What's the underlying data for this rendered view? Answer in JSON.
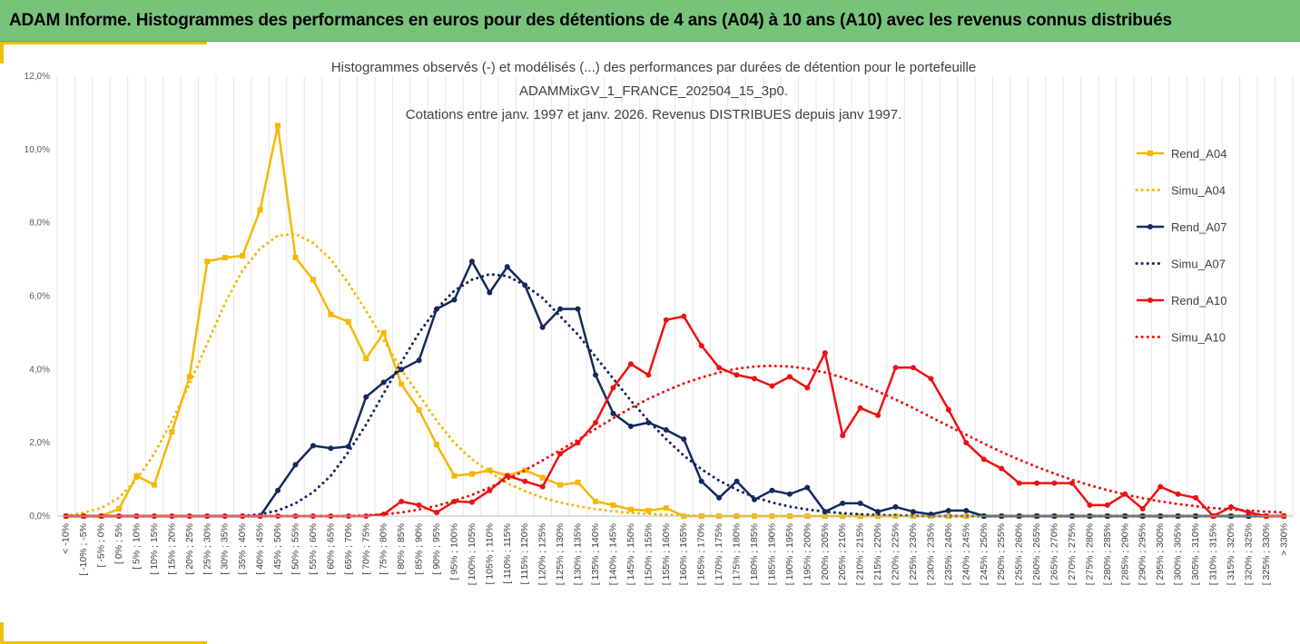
{
  "header": {
    "title": "ADAM Informe. Histogrammes des performances en euros pour des détentions de 4 ans (A04) à 10 ans (A10) avec les revenus connus distribués"
  },
  "chart_data": {
    "type": "line",
    "title_lines": [
      "Histogrammes observés (-) et modélisés (...) des performances par durées de détention pour le portefeuille",
      "ADAMMixGV_1_FRANCE_202504_15_3p0.",
      "Cotations entre janv. 1997 et janv. 2026. Revenus DISTRIBUES depuis janv 1997."
    ],
    "ylim": [
      0,
      12
    ],
    "yticks": [
      "0,0%",
      "2,0%",
      "4,0%",
      "6,0%",
      "8,0%",
      "10,0%",
      "12,0%"
    ],
    "grid": "vertical",
    "legend_position": "right",
    "categories": [
      "< -10%",
      "[ -10% ; -5%",
      "[ -5% ; 0%",
      "[ 0% ; 5%",
      "[ 5% ; 10%",
      "[ 10% ; 15%",
      "[ 15% ; 20%",
      "[ 20% ; 25%",
      "[ 25% ; 30%",
      "[ 30% ; 35%",
      "[ 35% ; 40%",
      "[ 40% ; 45%",
      "[ 45% ; 50%",
      "[ 50% ; 55%",
      "[ 55% ; 60%",
      "[ 60% ; 65%",
      "[ 65% ; 70%",
      "[ 70% ; 75%",
      "[ 75% ; 80%",
      "[ 80% ; 85%",
      "[ 85% ; 90%",
      "[ 90% ; 95%",
      "[ 95% ; 100%",
      "[ 100% ; 105%",
      "[ 105% ; 110%",
      "[ 110% ; 115%",
      "[ 115% ; 120%",
      "[ 120% ; 125%",
      "[ 125% ; 130%",
      "[ 130% ; 135%",
      "[ 135% ; 140%",
      "[ 140% ; 145%",
      "[ 145% ; 150%",
      "[ 150% ; 155%",
      "[ 155% ; 160%",
      "[ 160% ; 165%",
      "[ 165% ; 170%",
      "[ 170% ; 175%",
      "[ 175% ; 180%",
      "[ 180% ; 185%",
      "[ 185% ; 190%",
      "[ 190% ; 195%",
      "[ 195% ; 200%",
      "[ 200% ; 205%",
      "[ 205% ; 210%",
      "[ 210% ; 215%",
      "[ 215% ; 220%",
      "[ 220% ; 225%",
      "[ 225% ; 230%",
      "[ 230% ; 235%",
      "[ 235% ; 240%",
      "[ 240% ; 245%",
      "[ 245% ; 250%",
      "[ 250% ; 255%",
      "[ 255% ; 260%",
      "[ 260% ; 265%",
      "[ 265% ; 270%",
      "[ 270% ; 275%",
      "[ 275% ; 280%",
      "[ 280% ; 285%",
      "[ 285% ; 290%",
      "[ 290% ; 295%",
      "[ 295% ; 300%",
      "[ 300% ; 305%",
      "[ 305% ; 310%",
      "[ 310% ; 315%",
      "[ 315% ; 320%",
      "[ 320% ; 325%",
      "[ 325% ; 330%",
      "> 330%"
    ],
    "series": [
      {
        "name": "Rend_A04",
        "color": "#f5b800",
        "style": "solid",
        "marker": "square",
        "values": [
          0,
          0,
          0,
          0.2,
          1.1,
          0.85,
          2.3,
          3.8,
          6.95,
          7.05,
          7.1,
          8.35,
          10.65,
          7.05,
          6.45,
          5.5,
          5.3,
          4.3,
          5.0,
          3.6,
          2.9,
          1.95,
          1.1,
          1.15,
          1.25,
          1.1,
          1.25,
          1.05,
          0.85,
          0.92,
          0.4,
          0.3,
          0.18,
          0.15,
          0.22,
          0,
          0,
          0,
          0,
          0,
          0,
          0,
          0,
          0,
          0,
          0,
          0,
          0,
          0,
          0,
          0,
          0,
          0,
          0,
          0,
          0,
          0,
          0,
          0,
          0,
          0,
          0,
          0,
          0,
          0,
          0,
          0,
          0,
          0,
          0
        ]
      },
      {
        "name": "Simu_A04",
        "color": "#f5b800",
        "style": "dotted",
        "values": [
          0,
          0.1,
          0.22,
          0.5,
          1.0,
          1.7,
          2.6,
          3.6,
          4.7,
          5.8,
          6.7,
          7.3,
          7.65,
          7.7,
          7.45,
          7.0,
          6.35,
          5.6,
          4.8,
          4.0,
          3.3,
          2.6,
          2.0,
          1.55,
          1.2,
          0.9,
          0.68,
          0.5,
          0.37,
          0.27,
          0.19,
          0.13,
          0.09,
          0.06,
          0.04,
          0.02,
          0.01,
          0,
          0,
          0,
          0,
          0,
          0,
          0,
          0,
          0,
          0,
          0,
          0,
          0,
          0,
          0,
          0,
          0,
          0,
          0,
          0,
          0,
          0,
          0,
          0,
          0,
          0,
          0,
          0,
          0,
          0,
          0,
          0,
          0
        ]
      },
      {
        "name": "Rend_A07",
        "color": "#13295e",
        "style": "solid",
        "marker": "circle",
        "values": [
          0,
          0,
          0,
          0,
          0,
          0,
          0,
          0,
          0,
          0,
          0,
          0,
          0.7,
          1.4,
          1.92,
          1.85,
          1.9,
          3.25,
          3.65,
          4.0,
          4.25,
          5.65,
          5.9,
          6.95,
          6.1,
          6.8,
          6.3,
          5.15,
          5.65,
          5.65,
          3.85,
          2.8,
          2.45,
          2.55,
          2.35,
          2.1,
          0.95,
          0.5,
          0.95,
          0.45,
          0.7,
          0.6,
          0.78,
          0.12,
          0.35,
          0.35,
          0.12,
          0.25,
          0.12,
          0.05,
          0.15,
          0.15,
          0,
          0,
          0,
          0,
          0,
          0,
          0,
          0,
          0,
          0,
          0,
          0,
          0,
          0,
          0,
          0,
          0,
          0
        ]
      },
      {
        "name": "Simu_A07",
        "color": "#13295e",
        "style": "dotted",
        "values": [
          0,
          0,
          0,
          0,
          0,
          0,
          0,
          0,
          0,
          0,
          0,
          0.05,
          0.15,
          0.35,
          0.65,
          1.1,
          1.75,
          2.5,
          3.35,
          4.2,
          5.0,
          5.65,
          6.15,
          6.45,
          6.6,
          6.55,
          6.3,
          5.95,
          5.45,
          4.95,
          4.35,
          3.75,
          3.15,
          2.6,
          2.1,
          1.65,
          1.28,
          0.97,
          0.72,
          0.52,
          0.37,
          0.26,
          0.18,
          0.12,
          0.08,
          0.05,
          0.03,
          0.02,
          0.01,
          0,
          0,
          0,
          0,
          0,
          0,
          0,
          0,
          0,
          0,
          0,
          0,
          0,
          0,
          0,
          0,
          0,
          0,
          0,
          0,
          0
        ]
      },
      {
        "name": "Rend_A10",
        "color": "#ee1111",
        "style": "solid",
        "marker": "circle",
        "values": [
          0,
          0,
          0,
          0,
          0,
          0,
          0,
          0,
          0,
          0,
          0,
          0,
          0,
          0,
          0,
          0,
          0,
          0,
          0.05,
          0.4,
          0.3,
          0.1,
          0.4,
          0.38,
          0.7,
          1.1,
          0.95,
          0.8,
          1.7,
          2.0,
          2.55,
          3.5,
          4.15,
          3.85,
          5.35,
          5.45,
          4.65,
          4.05,
          3.85,
          3.75,
          3.55,
          3.8,
          3.5,
          4.45,
          2.2,
          2.95,
          2.75,
          4.05,
          4.05,
          3.75,
          2.9,
          2.0,
          1.55,
          1.3,
          0.9,
          0.9,
          0.9,
          0.9,
          0.3,
          0.3,
          0.6,
          0.2,
          0.8,
          0.6,
          0.5,
          0,
          0.25,
          0.1,
          0,
          0
        ]
      },
      {
        "name": "Simu_A10",
        "color": "#ee1111",
        "style": "dotted",
        "values": [
          0,
          0,
          0,
          0,
          0,
          0,
          0,
          0,
          0,
          0,
          0,
          0,
          0,
          0,
          0,
          0,
          0,
          0.02,
          0.05,
          0.1,
          0.18,
          0.28,
          0.42,
          0.58,
          0.78,
          1.0,
          1.25,
          1.52,
          1.8,
          2.08,
          2.38,
          2.67,
          2.95,
          3.2,
          3.42,
          3.62,
          3.78,
          3.92,
          4.02,
          4.08,
          4.1,
          4.08,
          4.02,
          3.92,
          3.78,
          3.6,
          3.4,
          3.18,
          2.95,
          2.7,
          2.46,
          2.22,
          1.98,
          1.75,
          1.54,
          1.34,
          1.16,
          0.99,
          0.84,
          0.71,
          0.59,
          0.49,
          0.4,
          0.33,
          0.27,
          0.22,
          0.18,
          0.15,
          0.12,
          0.1
        ]
      }
    ]
  }
}
